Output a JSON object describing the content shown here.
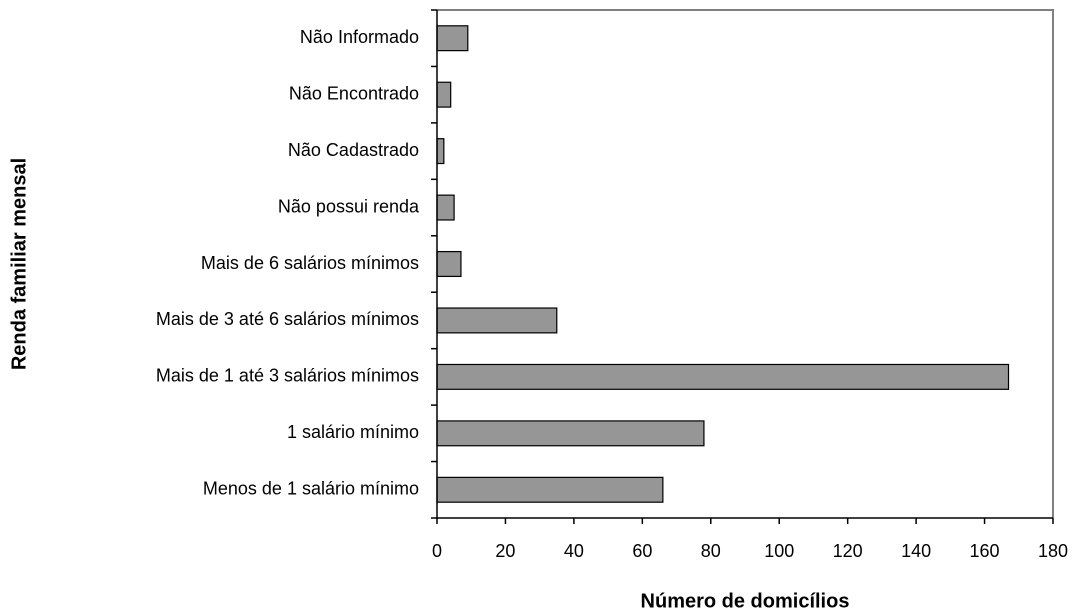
{
  "chart_data": {
    "type": "barh",
    "xlabel": "Número de domicílios",
    "ylabel": "Renda familiar mensal",
    "categories": [
      "Menos de 1 salário mínimo",
      "1 salário mínimo",
      "Mais de 1 até 3 salários mínimos",
      "Mais de 3 até 6 salários mínimos",
      "Mais de 6 salários mínimos",
      "Não possui renda",
      "Não Cadastrado",
      "Não Encontrado",
      "Não Informado"
    ],
    "values": [
      66,
      78,
      167,
      35,
      7,
      5,
      2,
      4,
      9
    ],
    "color": "#969696",
    "xlim": [
      0,
      180
    ],
    "xticks": [
      0,
      20,
      40,
      60,
      80,
      100,
      120,
      140,
      160,
      180
    ]
  }
}
